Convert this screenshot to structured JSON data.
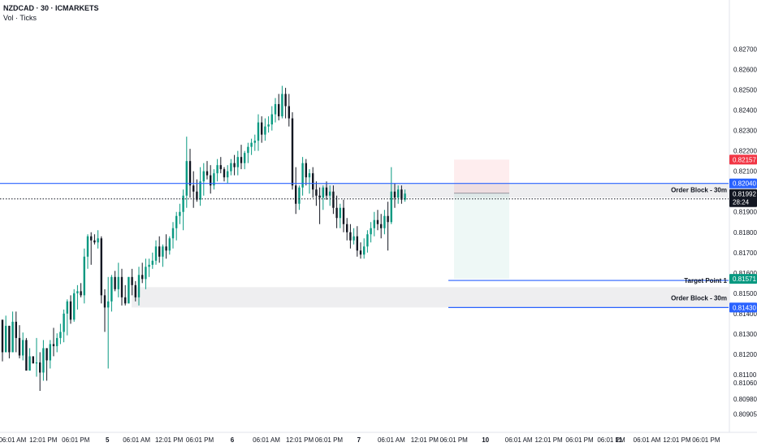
{
  "header": {
    "title": "NZDCAD · 30 · ICMARKETS",
    "subtitle": "Vol · Ticks"
  },
  "chart_data": {
    "type": "candlestick",
    "symbol": "NZDCAD",
    "interval": "30",
    "exchange": "ICMARKETS",
    "ylim": [
      0.8086,
      0.8283
    ],
    "y_ticks": [
      "0.82700",
      "0.82600",
      "0.82500",
      "0.82400",
      "0.82300",
      "0.82200",
      "0.82100",
      "0.81900",
      "0.81800",
      "0.81700",
      "0.81600",
      "0.81500",
      "0.81400",
      "0.81300",
      "0.81200",
      "0.81100",
      "0.81060",
      "0.80980",
      "0.80905"
    ],
    "y_tick_values": [
      0.827,
      0.826,
      0.825,
      0.824,
      0.823,
      0.822,
      0.821,
      0.819,
      0.818,
      0.817,
      0.816,
      0.815,
      0.814,
      0.813,
      0.812,
      0.811,
      0.8106,
      0.8098,
      0.80905
    ],
    "x_ticks": [
      "06:01 AM",
      "12:01 PM",
      "06:01 PM",
      "5",
      "06:01 AM",
      "12:01 PM",
      "06:01 PM",
      "6",
      "06:01 AM",
      "12:01 PM",
      "06:01 PM",
      "7",
      "06:01 AM",
      "12:01 PM",
      "06:01 PM",
      "10",
      "06:01 AM",
      "12:01 PM",
      "06:01 PM",
      "06:01 PM",
      "11",
      "06:01 AM",
      "12:01 PM",
      "06:01 PM"
    ],
    "x_tick_pct": [
      0.0165,
      0.0572,
      0.1001,
      0.1419,
      0.1804,
      0.2233,
      0.264,
      0.3069,
      0.352,
      0.396,
      0.4345,
      0.4741,
      0.517,
      0.561,
      0.5995,
      0.6413,
      0.6853,
      0.7249,
      0.7656,
      0.8074,
      0.8173,
      0.8547,
      0.8943,
      0.9328
    ],
    "day_ticks": [
      "5",
      "6",
      "7",
      "10",
      "11"
    ],
    "current_price": "0.81992",
    "countdown": "28:24",
    "price_badges": [
      {
        "label": "0.82157",
        "value": 0.82157,
        "color": "#f23645"
      },
      {
        "label": "0.82040",
        "value": 0.8204,
        "color": "#2962ff"
      },
      {
        "label": "0.81571",
        "value": 0.81571,
        "color": "#089981"
      },
      {
        "label": "0.81430",
        "value": 0.8143,
        "color": "#2962ff"
      }
    ],
    "levels": [
      {
        "label": "Order Block - 30m",
        "value": 0.8204
      },
      {
        "label": "Target Point 1",
        "value": 0.81571
      },
      {
        "label": "Order Block - 30m",
        "value": 0.8143
      }
    ],
    "zones": [
      {
        "top": 0.8204,
        "bottom": 0.8197
      },
      {
        "top": 0.8153,
        "bottom": 0.8143
      }
    ],
    "position": {
      "entry": 0.81992,
      "stop": 0.82157,
      "target": 0.81571
    },
    "colors": {
      "up": "#089981",
      "down": "#131722",
      "level": "#2962ff",
      "stop": "#f23645"
    },
    "candles": [
      [
        0.8137,
        0.81365,
        0.81165,
        0.8121
      ],
      [
        0.8121,
        0.8139,
        0.8121,
        0.8134
      ],
      [
        0.8134,
        0.8134,
        0.8118,
        0.8121
      ],
      [
        0.8121,
        0.8141,
        0.8121,
        0.8136
      ],
      [
        0.8136,
        0.8141,
        0.8121,
        0.8128
      ],
      [
        0.8128,
        0.81343,
        0.8118,
        0.81194
      ],
      [
        0.81194,
        0.81307,
        0.8117,
        0.8127
      ],
      [
        0.8127,
        0.8128,
        0.8112,
        0.8112
      ],
      [
        0.8112,
        0.8123,
        0.8112,
        0.8119
      ],
      [
        0.8119,
        0.8119,
        0.81155,
        0.81155
      ],
      [
        0.81155,
        0.8128,
        0.8109,
        0.8116
      ],
      [
        0.8116,
        0.8121,
        0.8102,
        0.8111
      ],
      [
        0.8111,
        0.8127,
        0.8107,
        0.8123
      ],
      [
        0.8123,
        0.8123,
        0.8107,
        0.8117
      ],
      [
        0.8117,
        0.8127,
        0.8113,
        0.8125
      ],
      [
        0.8125,
        0.8133,
        0.8119,
        0.8124
      ],
      [
        0.8124,
        0.81303,
        0.8121,
        0.8128
      ],
      [
        0.8128,
        0.8135,
        0.8125,
        0.8131
      ],
      [
        0.8131,
        0.8142,
        0.81259,
        0.814
      ],
      [
        0.814,
        0.8147,
        0.81293,
        0.8146
      ],
      [
        0.8146,
        0.8149,
        0.8135,
        0.8137
      ],
      [
        0.8137,
        0.8152,
        0.8136,
        0.815
      ],
      [
        0.815,
        0.8154,
        0.8142,
        0.8151
      ],
      [
        0.8151,
        0.8155,
        0.8148,
        0.8149
      ],
      [
        0.8149,
        0.8172,
        0.8145,
        0.8168
      ],
      [
        0.8168,
        0.8179,
        0.8162,
        0.8178
      ],
      [
        0.8178,
        0.818,
        0.8164,
        0.8176
      ],
      [
        0.8176,
        0.8179,
        0.8174,
        0.8175
      ],
      [
        0.8175,
        0.8181,
        0.8172,
        0.8177
      ],
      [
        0.8177,
        0.8178,
        0.8145,
        0.8149
      ],
      [
        0.8149,
        0.8152,
        0.8131,
        0.8143
      ],
      [
        0.8143,
        0.8158,
        0.8113,
        0.8146
      ],
      [
        0.8146,
        0.8159,
        0.8141,
        0.8158
      ],
      [
        0.8158,
        0.8161,
        0.8151,
        0.8152
      ],
      [
        0.8152,
        0.8165,
        0.8148,
        0.8158
      ],
      [
        0.8158,
        0.8162,
        0.8144,
        0.8148
      ],
      [
        0.8148,
        0.8154,
        0.8144,
        0.8145
      ],
      [
        0.8145,
        0.8158,
        0.8145,
        0.8158
      ],
      [
        0.8158,
        0.8162,
        0.8149,
        0.8154
      ],
      [
        0.8154,
        0.8156,
        0.8146,
        0.8148
      ],
      [
        0.8148,
        0.8163,
        0.8144,
        0.8159
      ],
      [
        0.8159,
        0.8165,
        0.8155,
        0.8157
      ],
      [
        0.8157,
        0.8167,
        0.8152,
        0.8163
      ],
      [
        0.8163,
        0.8167,
        0.8158,
        0.8164
      ],
      [
        0.8164,
        0.817,
        0.8162,
        0.8166
      ],
      [
        0.8166,
        0.8176,
        0.8164,
        0.8173
      ],
      [
        0.8173,
        0.8178,
        0.8165,
        0.8168
      ],
      [
        0.8168,
        0.8174,
        0.8163,
        0.8173
      ],
      [
        0.8173,
        0.8179,
        0.8167,
        0.8171
      ],
      [
        0.8171,
        0.8178,
        0.8169,
        0.8177
      ],
      [
        0.8177,
        0.8185,
        0.8172,
        0.8182
      ],
      [
        0.8182,
        0.819,
        0.8176,
        0.8188
      ],
      [
        0.8188,
        0.8194,
        0.8184,
        0.819
      ],
      [
        0.819,
        0.8201,
        0.8181,
        0.8198
      ],
      [
        0.8198,
        0.8227,
        0.8192,
        0.8215
      ],
      [
        0.8215,
        0.8221,
        0.8197,
        0.8203
      ],
      [
        0.8203,
        0.821,
        0.8192,
        0.82
      ],
      [
        0.82,
        0.8206,
        0.8195,
        0.8196
      ],
      [
        0.8196,
        0.8212,
        0.8193,
        0.8205
      ],
      [
        0.8205,
        0.8214,
        0.8198,
        0.821
      ],
      [
        0.821,
        0.8215,
        0.8206,
        0.8208
      ],
      [
        0.8208,
        0.8213,
        0.8199,
        0.8203
      ],
      [
        0.8203,
        0.8211,
        0.8201,
        0.8209
      ],
      [
        0.8209,
        0.8216,
        0.8205,
        0.8213
      ],
      [
        0.8213,
        0.8217,
        0.8209,
        0.8211
      ],
      [
        0.8211,
        0.8212,
        0.8205,
        0.8207
      ],
      [
        0.8207,
        0.8213,
        0.8204,
        0.821
      ],
      [
        0.821,
        0.8216,
        0.8208,
        0.8214
      ],
      [
        0.8214,
        0.8218,
        0.8208,
        0.8212
      ],
      [
        0.8212,
        0.822,
        0.8208,
        0.8217
      ],
      [
        0.8217,
        0.8223,
        0.8211,
        0.8214
      ],
      [
        0.8214,
        0.822,
        0.8211,
        0.8219
      ],
      [
        0.8219,
        0.8224,
        0.8214,
        0.8222
      ],
      [
        0.8222,
        0.8226,
        0.8218,
        0.8224
      ],
      [
        0.8224,
        0.8228,
        0.822,
        0.8225
      ],
      [
        0.8225,
        0.8238,
        0.822,
        0.8234
      ],
      [
        0.8234,
        0.8237,
        0.8224,
        0.8228
      ],
      [
        0.8228,
        0.8236,
        0.8225,
        0.8232
      ],
      [
        0.8232,
        0.8237,
        0.8229,
        0.8233
      ],
      [
        0.8233,
        0.8242,
        0.823,
        0.8238
      ],
      [
        0.8238,
        0.8246,
        0.8234,
        0.8243
      ],
      [
        0.8243,
        0.8248,
        0.8235,
        0.8237
      ],
      [
        0.8237,
        0.8252,
        0.8236,
        0.8248
      ],
      [
        0.8248,
        0.8251,
        0.8236,
        0.8242
      ],
      [
        0.8242,
        0.8248,
        0.8232,
        0.8236
      ],
      [
        0.8236,
        0.8239,
        0.8201,
        0.8203
      ],
      [
        0.8203,
        0.8212,
        0.8189,
        0.8194
      ],
      [
        0.8194,
        0.8203,
        0.8191,
        0.8202
      ],
      [
        0.8202,
        0.8217,
        0.8198,
        0.8214
      ],
      [
        0.8214,
        0.8216,
        0.8203,
        0.8207
      ],
      [
        0.8207,
        0.8211,
        0.8199,
        0.8209
      ],
      [
        0.8209,
        0.8212,
        0.8197,
        0.8201
      ],
      [
        0.8201,
        0.8205,
        0.8193,
        0.8198
      ],
      [
        0.8198,
        0.8202,
        0.8184,
        0.8197
      ],
      [
        0.8197,
        0.8203,
        0.8191,
        0.8202
      ],
      [
        0.8202,
        0.8205,
        0.8196,
        0.8198
      ],
      [
        0.8198,
        0.8203,
        0.8193,
        0.82
      ],
      [
        0.82,
        0.8203,
        0.8189,
        0.8192
      ],
      [
        0.8192,
        0.8198,
        0.8182,
        0.8187
      ],
      [
        0.8187,
        0.8194,
        0.8182,
        0.8192
      ],
      [
        0.8192,
        0.8196,
        0.818,
        0.8184
      ],
      [
        0.8184,
        0.8187,
        0.8176,
        0.818
      ],
      [
        0.818,
        0.8184,
        0.8172,
        0.8176
      ],
      [
        0.8176,
        0.8182,
        0.8174,
        0.8178
      ],
      [
        0.8178,
        0.8183,
        0.8168,
        0.8171
      ],
      [
        0.8171,
        0.8175,
        0.8167,
        0.8169
      ],
      [
        0.8169,
        0.8177,
        0.8167,
        0.8173
      ],
      [
        0.8173,
        0.8181,
        0.817,
        0.8179
      ],
      [
        0.8179,
        0.8185,
        0.8175,
        0.8182
      ],
      [
        0.8182,
        0.819,
        0.8178,
        0.8186
      ],
      [
        0.8186,
        0.8191,
        0.8181,
        0.8184
      ],
      [
        0.8184,
        0.8189,
        0.8177,
        0.8182
      ],
      [
        0.8182,
        0.8191,
        0.8179,
        0.8188
      ],
      [
        0.8188,
        0.8195,
        0.8171,
        0.8185
      ],
      [
        0.8185,
        0.8212,
        0.8184,
        0.82
      ],
      [
        0.82,
        0.8204,
        0.8192,
        0.8197
      ],
      [
        0.8197,
        0.8203,
        0.8194,
        0.8201
      ],
      [
        0.8201,
        0.8203,
        0.8194,
        0.8196
      ],
      [
        0.8196,
        0.8201,
        0.8195,
        0.8199
      ]
    ]
  }
}
